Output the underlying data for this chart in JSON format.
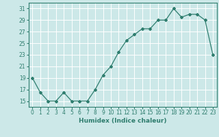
{
  "x": [
    0,
    1,
    2,
    3,
    4,
    5,
    6,
    7,
    8,
    9,
    10,
    11,
    12,
    13,
    14,
    15,
    16,
    17,
    18,
    19,
    20,
    21,
    22,
    23
  ],
  "y": [
    19,
    16.5,
    15,
    15,
    16.5,
    15,
    15,
    15,
    17,
    19.5,
    21,
    23.5,
    25.5,
    26.5,
    27.5,
    27.5,
    29,
    29,
    31,
    29.5,
    30,
    30,
    29,
    23
  ],
  "xlabel": "Humidex (Indice chaleur)",
  "xlim": [
    -0.5,
    23.5
  ],
  "ylim": [
    14,
    32
  ],
  "yticks": [
    15,
    17,
    19,
    21,
    23,
    25,
    27,
    29,
    31
  ],
  "xticks": [
    0,
    1,
    2,
    3,
    4,
    5,
    6,
    7,
    8,
    9,
    10,
    11,
    12,
    13,
    14,
    15,
    16,
    17,
    18,
    19,
    20,
    21,
    22,
    23
  ],
  "line_color": "#2e7d6e",
  "marker": "D",
  "marker_size": 2.0,
  "bg_color": "#cce8e8",
  "grid_color": "#ffffff"
}
